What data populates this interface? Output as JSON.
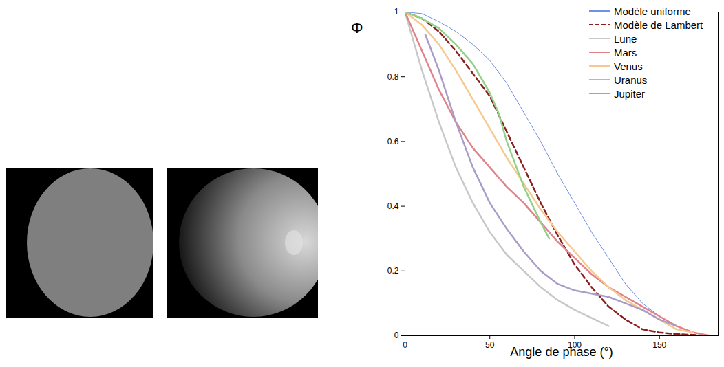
{
  "chart_data": {
    "type": "line",
    "x_label": "Angle de phase (°)",
    "y_label": "Φ",
    "xlim": [
      0,
      185
    ],
    "ylim": [
      0,
      1
    ],
    "xticks": [
      0,
      50,
      100,
      150
    ],
    "yticks": [
      0,
      0.2,
      0.4,
      0.6,
      0.8,
      1
    ],
    "grid": false,
    "legend": "upper right",
    "series": [
      {
        "name": "Modèle uniforme",
        "color": "#6f8fe8",
        "line_style": "solid",
        "x": [
          0,
          10,
          20,
          30,
          40,
          50,
          60,
          70,
          80,
          90,
          100,
          110,
          120,
          130,
          140,
          150,
          160,
          170,
          180
        ],
        "values": [
          1,
          0.995,
          0.97,
          0.94,
          0.9,
          0.85,
          0.78,
          0.69,
          0.6,
          0.5,
          0.41,
          0.32,
          0.24,
          0.16,
          0.1,
          0.06,
          0.03,
          0.01,
          0
        ]
      },
      {
        "name": "Modèle de Lambert",
        "color": "#8b1f1f",
        "line_style": "dashed",
        "x": [
          0,
          10,
          20,
          30,
          40,
          50,
          60,
          70,
          80,
          90,
          100,
          110,
          120,
          130,
          140,
          150,
          160,
          180
        ],
        "values": [
          1,
          0.98,
          0.94,
          0.88,
          0.81,
          0.74,
          0.63,
          0.52,
          0.41,
          0.31,
          0.22,
          0.15,
          0.09,
          0.05,
          0.02,
          0.01,
          0.005,
          0
        ]
      },
      {
        "name": "Lune",
        "color": "#c8c8c8",
        "line_style": "solid",
        "x": [
          0,
          10,
          20,
          30,
          40,
          50,
          60,
          70,
          80,
          90,
          100,
          110,
          120
        ],
        "values": [
          1,
          0.82,
          0.66,
          0.52,
          0.41,
          0.32,
          0.25,
          0.2,
          0.15,
          0.11,
          0.08,
          0.055,
          0.03
        ]
      },
      {
        "name": "Mars",
        "color": "#e0838a",
        "line_style": "solid",
        "x": [
          0,
          10,
          20,
          30,
          40,
          50,
          60,
          70,
          80,
          90,
          100,
          110,
          120,
          130,
          140,
          150,
          160,
          170,
          180
        ],
        "values": [
          1,
          0.88,
          0.76,
          0.66,
          0.58,
          0.52,
          0.46,
          0.41,
          0.35,
          0.29,
          0.24,
          0.19,
          0.15,
          0.12,
          0.09,
          0.06,
          0.03,
          0.01,
          0
        ]
      },
      {
        "name": "Venus",
        "color": "#f5c98f",
        "line_style": "solid",
        "x": [
          0,
          10,
          20,
          30,
          40,
          50,
          60,
          70,
          80,
          90,
          100,
          110,
          120,
          130,
          140,
          150,
          160,
          170
        ],
        "values": [
          1,
          0.96,
          0.9,
          0.82,
          0.73,
          0.64,
          0.55,
          0.47,
          0.39,
          0.32,
          0.26,
          0.2,
          0.15,
          0.11,
          0.08,
          0.05,
          0.02,
          0.01
        ]
      },
      {
        "name": "Uranus",
        "color": "#93d18a",
        "line_style": "solid",
        "x": [
          0,
          10,
          20,
          30,
          40,
          50,
          55,
          60,
          70,
          80,
          85
        ],
        "values": [
          1,
          0.98,
          0.95,
          0.9,
          0.84,
          0.75,
          0.69,
          0.6,
          0.46,
          0.35,
          0.3
        ]
      },
      {
        "name": "Jupiter",
        "color": "#a99cc8",
        "line_style": "solid",
        "x": [
          12,
          20,
          30,
          40,
          50,
          60,
          70,
          80,
          90,
          100,
          110,
          120,
          130,
          140,
          150,
          160
        ],
        "values": [
          0.93,
          0.82,
          0.66,
          0.52,
          0.41,
          0.33,
          0.26,
          0.2,
          0.16,
          0.14,
          0.13,
          0.12,
          0.1,
          0.08,
          0.05,
          0.03
        ]
      }
    ]
  }
}
